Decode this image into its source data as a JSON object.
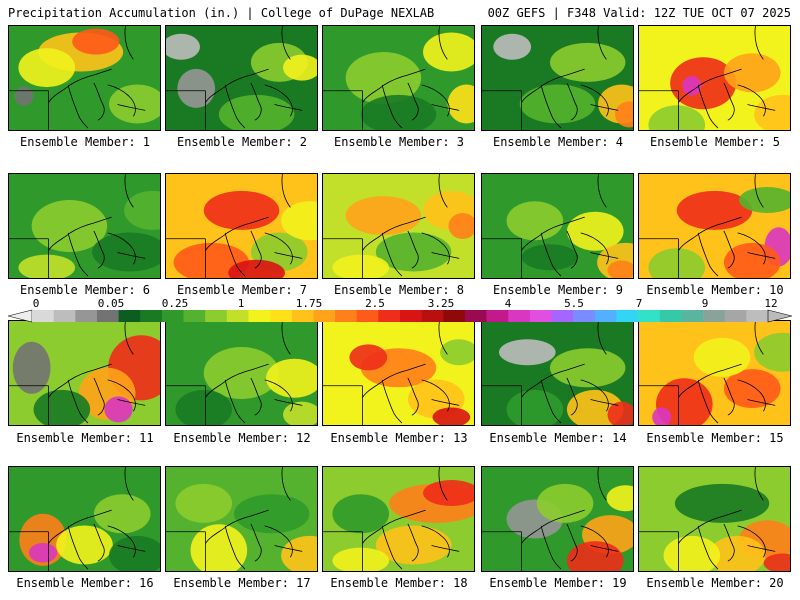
{
  "header": {
    "left_title": "Precipitation Accumulation (in.) | College of DuPage NEXLAB",
    "right_title": "00Z GEFS | F348 Valid: 12Z TUE OCT 07 2025"
  },
  "colorbar": {
    "labels": [
      "0",
      "0.05",
      "0.25",
      "1",
      "1.75",
      "2.5",
      "3.25",
      "4",
      "5.5",
      "7",
      "9",
      "12"
    ],
    "colors": [
      "#d9d9d9",
      "#bdbdbd",
      "#969696",
      "#737373",
      "#0b5e1f",
      "#1a7a24",
      "#2f9a2b",
      "#55b22e",
      "#8ccc2f",
      "#c2e02a",
      "#f2f21d",
      "#ffe11a",
      "#ffc21a",
      "#ffa31a",
      "#ff7f1a",
      "#ff5a1a",
      "#ee2d1a",
      "#d81414",
      "#b80f0f",
      "#8e0a0a",
      "#9a0a50",
      "#c21a8a",
      "#d936c2",
      "#e04fe0",
      "#a566ff",
      "#7a8cff",
      "#52b0ff",
      "#33d6f2",
      "#33e0c8",
      "#36c9a8",
      "#5ab5a0",
      "#8aa39a",
      "#a6a6a6",
      "#bdbdbd"
    ]
  },
  "members": [
    {
      "label": "Ensemble Member: 1",
      "base": "#2f9a2b",
      "blobs": [
        [
          "#ffc21a",
          0.25,
          0.1,
          0.45,
          0.3
        ],
        [
          "#ff5a1a",
          0.45,
          0.05,
          0.25,
          0.2
        ],
        [
          "#f2f21d",
          0.1,
          0.25,
          0.3,
          0.3
        ],
        [
          "#737373",
          0.05,
          0.6,
          0.1,
          0.15
        ],
        [
          "#8ccc2f",
          0.7,
          0.6,
          0.3,
          0.3
        ]
      ]
    },
    {
      "label": "Ensemble Member: 2",
      "base": "#1a7a24",
      "blobs": [
        [
          "#969696",
          0.1,
          0.45,
          0.2,
          0.3
        ],
        [
          "#bdbdbd",
          0.0,
          0.1,
          0.2,
          0.2
        ],
        [
          "#8ccc2f",
          0.6,
          0.2,
          0.3,
          0.3
        ],
        [
          "#f2f21d",
          0.8,
          0.3,
          0.2,
          0.2
        ],
        [
          "#55b22e",
          0.4,
          0.7,
          0.4,
          0.3
        ]
      ]
    },
    {
      "label": "Ensemble Member: 3",
      "base": "#2f9a2b",
      "blobs": [
        [
          "#8ccc2f",
          0.2,
          0.3,
          0.4,
          0.4
        ],
        [
          "#f2f21d",
          0.7,
          0.1,
          0.3,
          0.3
        ],
        [
          "#ffe11a",
          0.85,
          0.6,
          0.2,
          0.3
        ],
        [
          "#1a7a24",
          0.3,
          0.7,
          0.4,
          0.3
        ]
      ]
    },
    {
      "label": "Ensemble Member: 4",
      "base": "#1a7a24",
      "blobs": [
        [
          "#bdbdbd",
          0.1,
          0.1,
          0.2,
          0.2
        ],
        [
          "#8ccc2f",
          0.5,
          0.2,
          0.4,
          0.3
        ],
        [
          "#ffc21a",
          0.8,
          0.6,
          0.25,
          0.3
        ],
        [
          "#ff7f1a",
          0.9,
          0.75,
          0.15,
          0.2
        ],
        [
          "#55b22e",
          0.3,
          0.6,
          0.4,
          0.3
        ]
      ]
    },
    {
      "label": "Ensemble Member: 5",
      "base": "#f2f21d",
      "blobs": [
        [
          "#ee2d1a",
          0.25,
          0.35,
          0.35,
          0.4
        ],
        [
          "#d936c2",
          0.3,
          0.5,
          0.1,
          0.15
        ],
        [
          "#ffa31a",
          0.6,
          0.3,
          0.3,
          0.3
        ],
        [
          "#8ccc2f",
          0.1,
          0.8,
          0.3,
          0.3
        ],
        [
          "#ffc21a",
          0.8,
          0.7,
          0.3,
          0.3
        ]
      ]
    },
    {
      "label": "Ensemble Member: 6",
      "base": "#2f9a2b",
      "blobs": [
        [
          "#8ccc2f",
          0.2,
          0.3,
          0.4,
          0.4
        ],
        [
          "#1a7a24",
          0.6,
          0.6,
          0.4,
          0.3
        ],
        [
          "#55b22e",
          0.8,
          0.2,
          0.3,
          0.3
        ],
        [
          "#c2e02a",
          0.1,
          0.8,
          0.3,
          0.2
        ]
      ]
    },
    {
      "label": "Ensemble Member: 7",
      "base": "#ffc21a",
      "blobs": [
        [
          "#ee2d1a",
          0.3,
          0.2,
          0.4,
          0.3
        ],
        [
          "#ff5a1a",
          0.1,
          0.7,
          0.4,
          0.3
        ],
        [
          "#8ccc2f",
          0.6,
          0.6,
          0.3,
          0.3
        ],
        [
          "#f2f21d",
          0.8,
          0.3,
          0.3,
          0.3
        ],
        [
          "#d81414",
          0.45,
          0.85,
          0.3,
          0.2
        ]
      ]
    },
    {
      "label": "Ensemble Member: 8",
      "base": "#c2e02a",
      "blobs": [
        [
          "#ffa31a",
          0.2,
          0.25,
          0.4,
          0.3
        ],
        [
          "#ffc21a",
          0.7,
          0.2,
          0.3,
          0.3
        ],
        [
          "#55b22e",
          0.4,
          0.6,
          0.4,
          0.3
        ],
        [
          "#ff7f1a",
          0.85,
          0.4,
          0.15,
          0.2
        ],
        [
          "#f2f21d",
          0.1,
          0.8,
          0.3,
          0.2
        ]
      ]
    },
    {
      "label": "Ensemble Member: 9",
      "base": "#2f9a2b",
      "blobs": [
        [
          "#8ccc2f",
          0.2,
          0.3,
          0.3,
          0.3
        ],
        [
          "#f2f21d",
          0.6,
          0.4,
          0.3,
          0.3
        ],
        [
          "#ffc21a",
          0.8,
          0.7,
          0.3,
          0.3
        ],
        [
          "#ff7f1a",
          0.85,
          0.85,
          0.15,
          0.15
        ],
        [
          "#1a7a24",
          0.3,
          0.7,
          0.3,
          0.2
        ]
      ]
    },
    {
      "label": "Ensemble Member: 10",
      "base": "#ffc21a",
      "blobs": [
        [
          "#ee2d1a",
          0.3,
          0.2,
          0.4,
          0.3
        ],
        [
          "#d936c2",
          0.85,
          0.55,
          0.15,
          0.3
        ],
        [
          "#ff5a1a",
          0.6,
          0.7,
          0.3,
          0.3
        ],
        [
          "#8ccc2f",
          0.1,
          0.75,
          0.3,
          0.3
        ],
        [
          "#55b22e",
          0.7,
          0.15,
          0.3,
          0.2
        ]
      ]
    },
    {
      "label": "Ensemble Member: 11",
      "base": "#8ccc2f",
      "blobs": [
        [
          "#737373",
          0.05,
          0.25,
          0.2,
          0.4
        ],
        [
          "#ee2d1a",
          0.7,
          0.2,
          0.35,
          0.5
        ],
        [
          "#ffa31a",
          0.5,
          0.5,
          0.3,
          0.4
        ],
        [
          "#d936c2",
          0.65,
          0.75,
          0.15,
          0.2
        ],
        [
          "#1a7a24",
          0.2,
          0.7,
          0.3,
          0.3
        ]
      ]
    },
    {
      "label": "Ensemble Member: 12",
      "base": "#2f9a2b",
      "blobs": [
        [
          "#8ccc2f",
          0.3,
          0.3,
          0.4,
          0.4
        ],
        [
          "#f2f21d",
          0.7,
          0.4,
          0.3,
          0.3
        ],
        [
          "#1a7a24",
          0.1,
          0.7,
          0.3,
          0.3
        ],
        [
          "#c2e02a",
          0.8,
          0.8,
          0.2,
          0.2
        ]
      ]
    },
    {
      "label": "Ensemble Member: 13",
      "base": "#f2f21d",
      "blobs": [
        [
          "#ff7f1a",
          0.3,
          0.3,
          0.4,
          0.3
        ],
        [
          "#ee2d1a",
          0.2,
          0.25,
          0.2,
          0.2
        ],
        [
          "#ffc21a",
          0.6,
          0.6,
          0.3,
          0.3
        ],
        [
          "#d81414",
          0.75,
          0.85,
          0.2,
          0.15
        ],
        [
          "#8ccc2f",
          0.8,
          0.2,
          0.2,
          0.2
        ]
      ]
    },
    {
      "label": "Ensemble Member: 14",
      "base": "#1a7a24",
      "blobs": [
        [
          "#bdbdbd",
          0.15,
          0.2,
          0.3,
          0.2
        ],
        [
          "#8ccc2f",
          0.5,
          0.3,
          0.4,
          0.3
        ],
        [
          "#ffc21a",
          0.6,
          0.7,
          0.3,
          0.3
        ],
        [
          "#ee2d1a",
          0.85,
          0.8,
          0.15,
          0.2
        ],
        [
          "#2f9a2b",
          0.2,
          0.7,
          0.3,
          0.3
        ]
      ]
    },
    {
      "label": "Ensemble Member: 15",
      "base": "#ffc21a",
      "blobs": [
        [
          "#ee2d1a",
          0.15,
          0.6,
          0.3,
          0.4
        ],
        [
          "#d936c2",
          0.1,
          0.85,
          0.1,
          0.15
        ],
        [
          "#ff5a1a",
          0.6,
          0.5,
          0.3,
          0.3
        ],
        [
          "#8ccc2f",
          0.8,
          0.15,
          0.3,
          0.3
        ],
        [
          "#f2f21d",
          0.4,
          0.2,
          0.3,
          0.3
        ]
      ]
    },
    {
      "label": "Ensemble Member: 16",
      "base": "#2f9a2b",
      "blobs": [
        [
          "#ff7f1a",
          0.1,
          0.5,
          0.25,
          0.4
        ],
        [
          "#d936c2",
          0.15,
          0.75,
          0.15,
          0.15
        ],
        [
          "#f2f21d",
          0.35,
          0.6,
          0.3,
          0.3
        ],
        [
          "#8ccc2f",
          0.6,
          0.3,
          0.3,
          0.3
        ],
        [
          "#1a7a24",
          0.7,
          0.7,
          0.3,
          0.3
        ]
      ]
    },
    {
      "label": "Ensemble Member: 17",
      "base": "#55b22e",
      "blobs": [
        [
          "#f2f21d",
          0.2,
          0.6,
          0.3,
          0.4
        ],
        [
          "#ffc21a",
          0.8,
          0.7,
          0.3,
          0.3
        ],
        [
          "#2f9a2b",
          0.5,
          0.3,
          0.4,
          0.3
        ],
        [
          "#8ccc2f",
          0.1,
          0.2,
          0.3,
          0.3
        ]
      ]
    },
    {
      "label": "Ensemble Member: 18",
      "base": "#8ccc2f",
      "blobs": [
        [
          "#ff7f1a",
          0.5,
          0.2,
          0.5,
          0.3
        ],
        [
          "#ee2d1a",
          0.7,
          0.15,
          0.3,
          0.2
        ],
        [
          "#ffc21a",
          0.4,
          0.6,
          0.4,
          0.3
        ],
        [
          "#f2f21d",
          0.1,
          0.8,
          0.3,
          0.2
        ],
        [
          "#2f9a2b",
          0.1,
          0.3,
          0.3,
          0.3
        ]
      ]
    },
    {
      "label": "Ensemble Member: 19",
      "base": "#2f9a2b",
      "blobs": [
        [
          "#969696",
          0.2,
          0.35,
          0.3,
          0.3
        ],
        [
          "#ffa31a",
          0.7,
          0.5,
          0.3,
          0.3
        ],
        [
          "#ee2d1a",
          0.6,
          0.75,
          0.3,
          0.3
        ],
        [
          "#8ccc2f",
          0.4,
          0.2,
          0.3,
          0.3
        ],
        [
          "#f2f21d",
          0.85,
          0.2,
          0.2,
          0.2
        ]
      ]
    },
    {
      "label": "Ensemble Member: 20",
      "base": "#8ccc2f",
      "blobs": [
        [
          "#1a7a24",
          0.3,
          0.2,
          0.5,
          0.3
        ],
        [
          "#ff7f1a",
          0.7,
          0.55,
          0.3,
          0.3
        ],
        [
          "#ffc21a",
          0.5,
          0.7,
          0.3,
          0.3
        ],
        [
          "#f2f21d",
          0.2,
          0.7,
          0.3,
          0.3
        ],
        [
          "#ee2d1a",
          0.85,
          0.85,
          0.2,
          0.15
        ]
      ]
    }
  ]
}
